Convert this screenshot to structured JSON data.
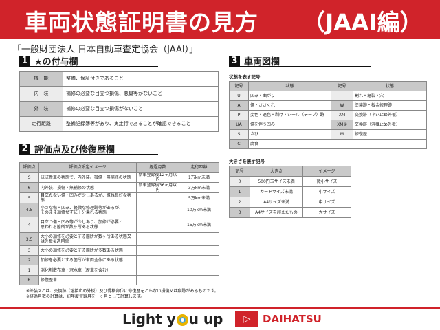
{
  "header": {
    "title": "車両状態証明書の見方",
    "subtitle": "（JAAI編）"
  },
  "organization": "「一般財団法人 日本自動車査定協会（JAAI）」",
  "section1": {
    "number": "1",
    "title": "★の付与欄",
    "rows": [
      {
        "label": "機　能",
        "value": "整備、保証付きであること"
      },
      {
        "label": "内　装",
        "value": "補修の必要な目立つ損傷、悪臭等がないこと"
      },
      {
        "label": "外　装",
        "value": "補修の必要な目立つ損傷がないこと"
      },
      {
        "label": "走行距離",
        "value": "整備記録簿等があり、実走行であることが確認できること"
      }
    ]
  },
  "section2": {
    "number": "2",
    "title": "評価点及び修復歴欄",
    "headers": [
      "評価点",
      "評価点設定イメージ",
      "経過月数",
      "走行距離"
    ],
    "rows": [
      {
        "score": "S",
        "image": "ほぼ新車の状態で、内外装、損傷・無補修の状態",
        "months": "新車登録後12ヶ月以内",
        "distance": "1万km未満"
      },
      {
        "score": "6",
        "image": "内外装、損傷・無補修の状態",
        "months": "新車登録後36ヶ月以内",
        "distance": "3万km未満"
      },
      {
        "score": "5",
        "image": "目立たない傷・凹みが少しあるが、概ね良好な状態",
        "months": "",
        "distance": "5万km未満"
      },
      {
        "score": "4.5",
        "image": "小さな傷・凹み、軽微な修理跡等があるが、\nそのまま加修せずに十分乗れる状態",
        "months": "",
        "distance": "10万km未満"
      },
      {
        "score": "4",
        "image": "目立つ傷・凹み等が少しあり、加修が必要と\n思われる箇所が数ヶ所ある状態",
        "months": "",
        "distance": "15万km未満"
      },
      {
        "score": "3.5",
        "image": "大小の加修を必要とする箇所が数ヶ所ある状態又\nは外板②適用車",
        "months": "",
        "distance": ""
      },
      {
        "score": "3",
        "image": "大小の加修を必要とする箇所が多数ある状態",
        "months": "",
        "distance": ""
      },
      {
        "score": "2",
        "image": "加修を必要とする箇所が車両全体にある状態",
        "months": "",
        "distance": ""
      },
      {
        "score": "1",
        "image": "消化剤散布車・冠水車（歴車を含む）",
        "months": "",
        "distance": ""
      },
      {
        "score": "R",
        "image": "修復歴車",
        "months": "",
        "distance": ""
      }
    ]
  },
  "notes": [
    "※外装②とは、交換跡（溶接止め外板）及び骨格部位に修復歴をとらない損傷又は痕跡があるものです。",
    "※経過月数の計算は、初年度登録月を一ヶ月として計算します。"
  ],
  "section3": {
    "number": "3",
    "title": "車両図欄",
    "state_caption": "状態を表す記号",
    "state_headers": [
      "記号",
      "状態",
      "記号",
      "状態"
    ],
    "state_rows": [
      [
        "U",
        "凹み・曲がり",
        "T",
        "割れ・亀裂・穴"
      ],
      [
        "A",
        "傷・ささくれ",
        "W",
        "塗装跡・板金修理跡"
      ],
      [
        "P",
        "変色・退色・剥げ・シール（テープ）跡",
        "XM",
        "交換跡（ネジ止め外板）"
      ],
      [
        "UA",
        "傷を伴う凹み",
        "XM②",
        "交換跡（溶接止め外板）"
      ],
      [
        "S",
        "さび",
        "M",
        "修復歴"
      ],
      [
        "C",
        "腐食",
        "",
        ""
      ]
    ],
    "size_caption": "大きさを表す記号",
    "size_headers": [
      "記号",
      "大きさ",
      "イメージ"
    ],
    "size_rows": [
      [
        "0",
        "500円玉サイズ未満",
        "微小サイズ"
      ],
      [
        "1",
        "カードサイズ未満",
        "小サイズ"
      ],
      [
        "2",
        "A4サイズ未満",
        "中サイズ"
      ],
      [
        "3",
        "A4サイズを超えたもの",
        "大サイズ"
      ]
    ]
  },
  "footer": {
    "slogan_pre": "Light y",
    "slogan_post": "u up",
    "brand": "DAIHATSU",
    "accent": "#d0232a"
  }
}
